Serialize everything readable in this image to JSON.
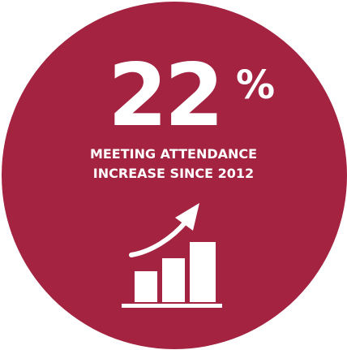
{
  "badge": {
    "color": "#a32340",
    "stat": {
      "value": "22",
      "unit": "%"
    },
    "caption": {
      "line1": "MEETING ATTENDANCE",
      "line2": "INCREASE SINCE 2012"
    },
    "icon": "bar-chart-growth-arrow-icon"
  }
}
